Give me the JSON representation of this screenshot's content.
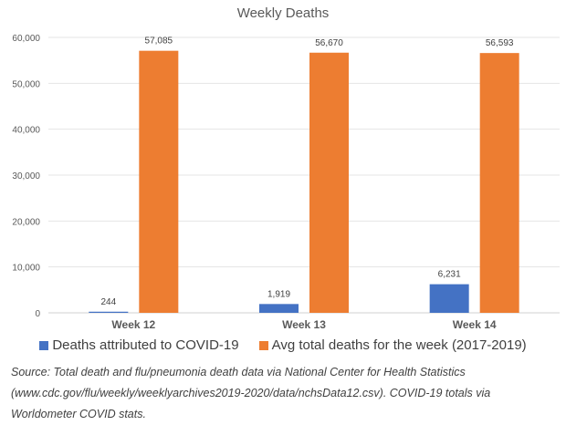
{
  "chart_data": {
    "type": "bar",
    "title": "Weekly Deaths",
    "categories": [
      "Week 12",
      "Week 13",
      "Week 14"
    ],
    "series": [
      {
        "name": "Deaths attributed to COVID-19",
        "color": "#4472C4",
        "values": [
          244,
          1919,
          6231
        ],
        "labels": [
          "244",
          "1,919",
          "6,231"
        ]
      },
      {
        "name": "Avg total deaths for the week (2017-2019)",
        "color": "#ED7D31",
        "values": [
          57085,
          56670,
          56593
        ],
        "labels": [
          "57,085",
          "56,670",
          "56,593"
        ]
      }
    ],
    "xlabel": "",
    "ylabel": "",
    "ylim": [
      0,
      60000
    ],
    "yticks": [
      0,
      10000,
      20000,
      30000,
      40000,
      50000,
      60000
    ],
    "ytick_labels": [
      "0",
      "10,000",
      "20,000",
      "30,000",
      "40,000",
      "50,000",
      "60,000"
    ],
    "grid": true,
    "legend": "bottom"
  },
  "source_note": "Source: Total death and flu/pneumonia death data via National Center for Health Statistics (www.cdc.gov/flu/weekly/weeklyarchives2019-2020/data/nchsData12.csv). COVID-19 totals via Worldometer COVID stats."
}
